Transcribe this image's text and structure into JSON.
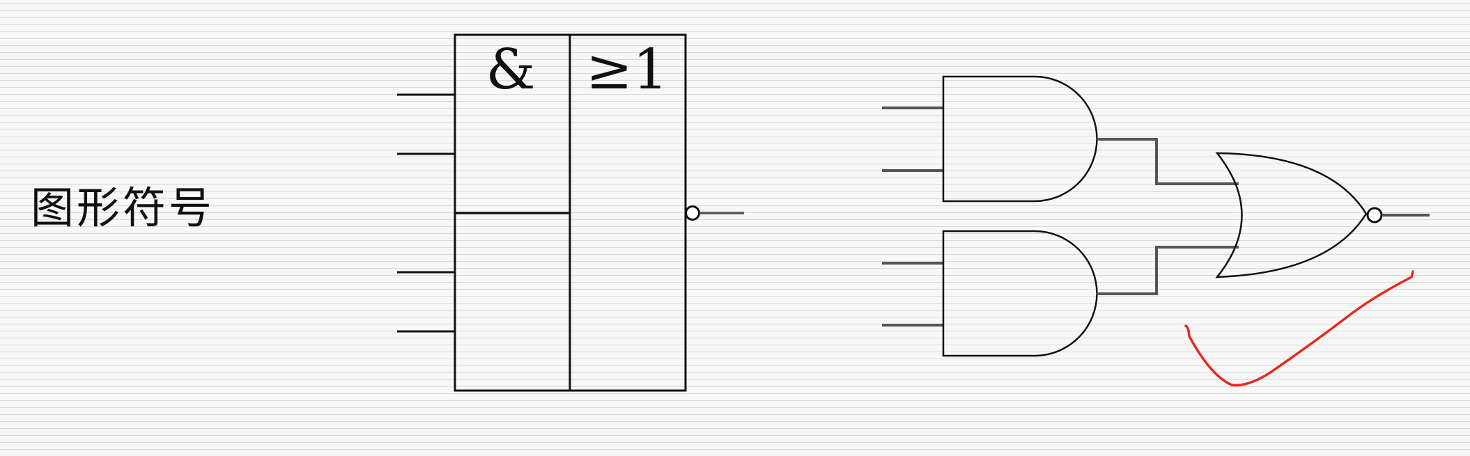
{
  "label": "图形符号",
  "ieee_symbol": {
    "and_label": "&",
    "or_label": "≥1"
  },
  "colors": {
    "line": "#111111",
    "wire": "#555555",
    "checkmark": "#e8281e"
  }
}
